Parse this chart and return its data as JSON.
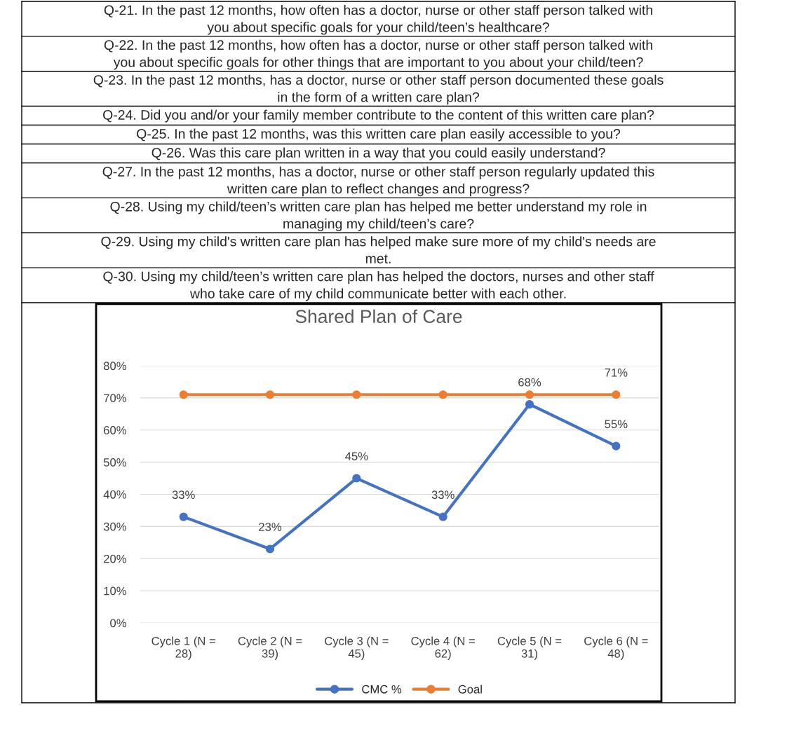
{
  "chart_data": {
    "type": "line",
    "title": "Shared Plan of Care",
    "annotations": [
      "Q-21. In the past 12 months, how often has a doctor, nurse or other staff person talked with\nyou about specific goals for your child/teen’s healthcare?",
      "Q-22. In the past 12 months, how often has a doctor, nurse or other staff person talked with\nyou about specific goals for other things that are important to you about your child/teen?",
      "Q-23. In the past 12 months, has a doctor, nurse or other staff person documented these goals\nin the form of a written care plan?",
      "Q-24. Did you and/or your family member contribute to the content of this written care plan?",
      "Q-25. In the past 12 months, was this written care plan easily accessible to you?",
      "Q-26. Was this care plan written in a way that you could easily understand?",
      "Q-27. In the past 12 months, has a doctor, nurse or other staff person regularly updated this\nwritten care plan to reflect changes and progress?",
      "Q-28. Using my child/teen’s written care plan has helped me better understand my role in\nmanaging my child/teen’s care?",
      "Q-29. Using my child's written care plan has helped make sure more of my child's needs are\nmet.",
      "Q-30. Using my child/teen’s written care plan has helped the doctors, nurses and other staff\nwho take care of my child communicate better with each other."
    ],
    "categories": [
      "Cycle 1 (N =\n28)",
      "Cycle 2 (N =\n39)",
      "Cycle 3 (N =\n45)",
      "Cycle 4 (N =\n62)",
      "Cycle 5 (N =\n31)",
      "Cycle 6 (N =\n48)"
    ],
    "series": [
      {
        "name": "CMC %",
        "color": "#4472c4",
        "values": [
          33,
          23,
          45,
          33,
          68,
          55
        ],
        "value_labels": [
          "33%",
          "23%",
          "45%",
          "33%",
          "68%",
          "55%"
        ]
      },
      {
        "name": "Goal",
        "color": "#ed7d31",
        "values": [
          71,
          71,
          71,
          71,
          71,
          71
        ],
        "value_labels": [
          null,
          null,
          null,
          null,
          null,
          "71%"
        ]
      }
    ],
    "ylim": [
      0,
      80
    ],
    "yticks": [
      {
        "value": 0,
        "label": "0%"
      },
      {
        "value": 10,
        "label": "10%"
      },
      {
        "value": 20,
        "label": "20%"
      },
      {
        "value": 30,
        "label": "30%"
      },
      {
        "value": 40,
        "label": "40%"
      },
      {
        "value": 50,
        "label": "50%"
      },
      {
        "value": 60,
        "label": "60%"
      },
      {
        "value": 70,
        "label": "70%"
      },
      {
        "value": 80,
        "label": "80%"
      }
    ],
    "grid": "y",
    "legend": "bottom",
    "marker": "circle",
    "line_style": "solid"
  }
}
